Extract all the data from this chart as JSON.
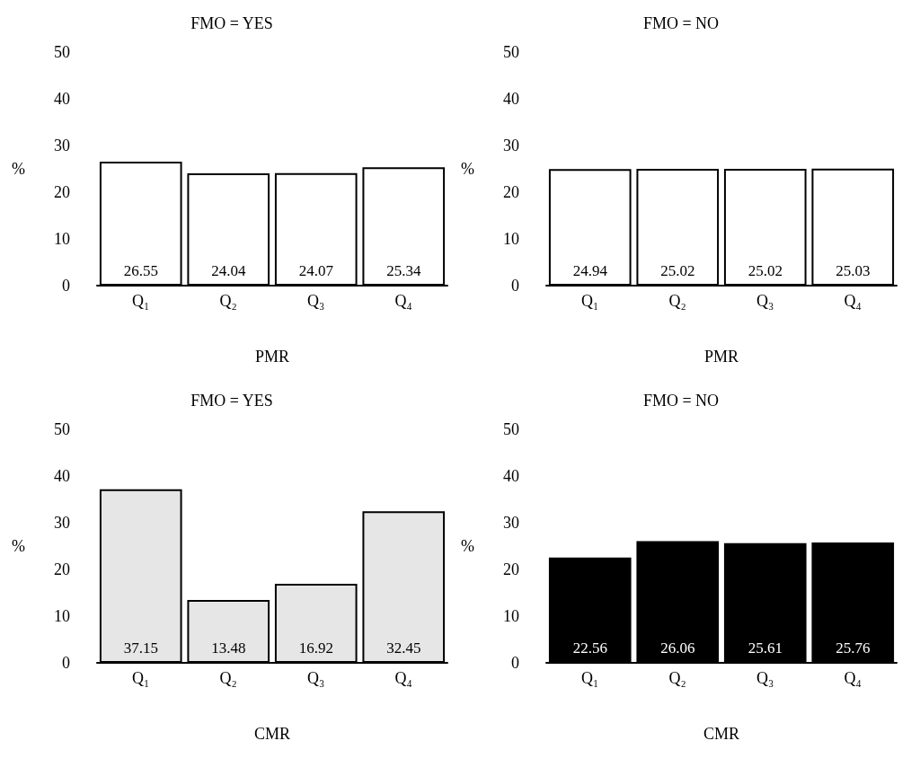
{
  "chart_data": [
    {
      "type": "bar",
      "title": "FMO = YES",
      "xlabel": "PMR",
      "ylabel": "%",
      "categories": [
        "Q₁",
        "Q₂",
        "Q₃",
        "Q₄"
      ],
      "values": [
        26.55,
        24.04,
        24.07,
        25.34
      ],
      "color": "#ffffff",
      "ylim": [
        0,
        50
      ],
      "yticks": [
        0,
        10,
        20,
        30,
        40,
        50
      ],
      "data_labels": true,
      "grid": false
    },
    {
      "type": "bar",
      "title": "FMO = NO",
      "xlabel": "PMR",
      "ylabel": "%",
      "categories": [
        "Q₁",
        "Q₂",
        "Q₃",
        "Q₄"
      ],
      "values": [
        24.94,
        25.02,
        25.02,
        25.03
      ],
      "color": "#ffffff",
      "ylim": [
        0,
        50
      ],
      "yticks": [
        0,
        10,
        20,
        30,
        40,
        50
      ],
      "data_labels": true,
      "grid": false
    },
    {
      "type": "bar",
      "title": "FMO = YES",
      "xlabel": "CMR",
      "ylabel": "%",
      "categories": [
        "Q₁",
        "Q₂",
        "Q₃",
        "Q₄"
      ],
      "values": [
        37.15,
        13.48,
        16.92,
        32.45
      ],
      "color": "#e6e6e6",
      "ylim": [
        0,
        50
      ],
      "yticks": [
        0,
        10,
        20,
        30,
        40,
        50
      ],
      "data_labels": true,
      "grid": false
    },
    {
      "type": "bar",
      "title": "FMO = NO",
      "xlabel": "CMR",
      "ylabel": "%",
      "categories": [
        "Q₁",
        "Q₂",
        "Q₃",
        "Q₄"
      ],
      "values": [
        22.56,
        26.06,
        25.61,
        25.76
      ],
      "color": "#000000",
      "ylim": [
        0,
        50
      ],
      "yticks": [
        0,
        10,
        20,
        30,
        40,
        50
      ],
      "data_labels": true,
      "grid": false
    }
  ]
}
